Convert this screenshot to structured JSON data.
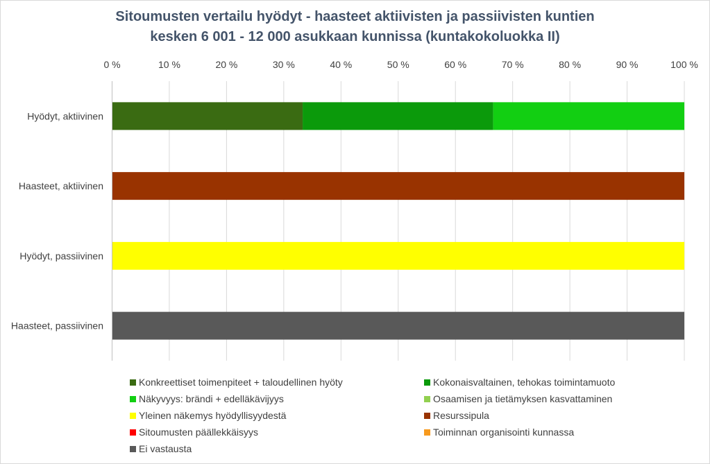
{
  "title_lines": [
    "Sitoumusten vertailu hyödyt - haasteet aktiivisten ja passiivisten kuntien",
    "kesken 6 001 - 12 000 asukkaan kunnissa (kuntakokoluokka II)"
  ],
  "chart_data": {
    "type": "bar",
    "orientation": "horizontal",
    "stacked": "percent",
    "title": "Sitoumusten vertailu hyödyt - haasteet aktiivisten ja passiivisten kuntien kesken 6 001 - 12 000 asukkaan kunnissa (kuntakokoluokka II)",
    "xaxis_position": "top",
    "xlim": [
      0,
      100
    ],
    "xticks": [
      "0 %",
      "10 %",
      "20 %",
      "30 %",
      "40 %",
      "50 %",
      "60 %",
      "70 %",
      "80 %",
      "90 %",
      "100 %"
    ],
    "grid": true,
    "legend_position": "bottom",
    "categories": [
      "Hyödyt, aktiivinen",
      "Haasteet, aktiivinen",
      "Hyödyt, passiivinen",
      "Haasteet, passiivinen"
    ],
    "series": [
      {
        "name": "Konkreettiset toimenpiteet + taloudellinen hyöty",
        "color": "#3a6b12",
        "values": [
          33.3,
          0,
          0,
          0
        ]
      },
      {
        "name": "Kokonaisvaltainen, tehokas toimintamuoto",
        "color": "#0b9a0b",
        "values": [
          33.3,
          0,
          0,
          0
        ]
      },
      {
        "name": "Näkyvyys: brändi + edelläkävijyys",
        "color": "#12cf12",
        "values": [
          33.4,
          0,
          0,
          0
        ]
      },
      {
        "name": "Osaamisen ja tietämyksen kasvattaminen",
        "color": "#92d050",
        "values": [
          0,
          0,
          0,
          0
        ]
      },
      {
        "name": "Yleinen näkemys hyödyllisyydestä",
        "color": "#ffff00",
        "values": [
          0,
          0,
          100,
          0
        ]
      },
      {
        "name": "Resurssipula",
        "color": "#993300",
        "values": [
          0,
          100,
          0,
          0
        ]
      },
      {
        "name": "Sitoumusten päällekkäisyys",
        "color": "#ff0000",
        "values": [
          0,
          0,
          0,
          0
        ]
      },
      {
        "name": "Toiminnan organisointi kunnassa",
        "color": "#f79a1e",
        "values": [
          0,
          0,
          0,
          0
        ]
      },
      {
        "name": "Ei vastausta",
        "color": "#595959",
        "values": [
          0,
          0,
          0,
          100
        ]
      }
    ]
  }
}
